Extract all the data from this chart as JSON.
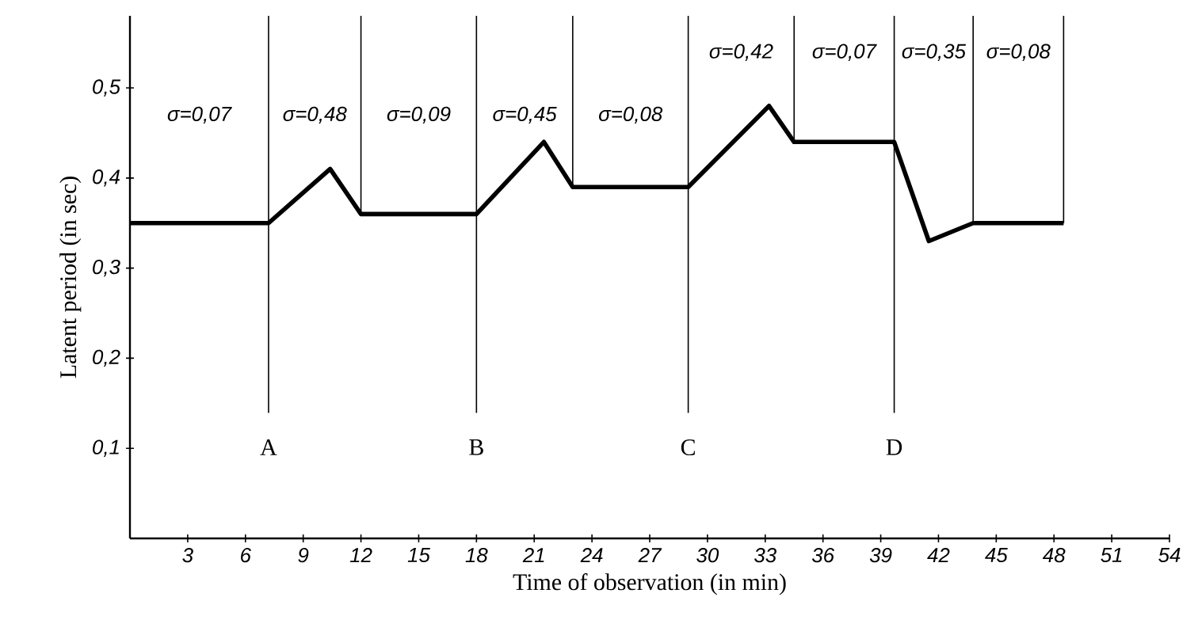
{
  "chart_data": {
    "type": "line",
    "xlabel": "Time of observation (in min)",
    "ylabel": "Latent period (in sec)",
    "x": [
      0,
      7.2,
      10.4,
      12,
      18,
      21.5,
      23,
      29,
      33.2,
      34.5,
      39.7,
      41.5,
      43.8,
      48.5
    ],
    "values": [
      0.35,
      0.35,
      0.41,
      0.36,
      0.36,
      0.44,
      0.39,
      0.39,
      0.48,
      0.44,
      0.44,
      0.33,
      0.35,
      0.35
    ],
    "color": "#000000",
    "marker": "none",
    "line_style": "solid",
    "xlim": [
      0,
      54
    ],
    "ylim": [
      0,
      0.58
    ],
    "xticks": [
      3,
      6,
      9,
      12,
      15,
      18,
      21,
      24,
      27,
      30,
      33,
      36,
      39,
      42,
      45,
      48,
      51,
      54
    ],
    "yticks": [
      {
        "value": 0.1,
        "label": "0,1"
      },
      {
        "value": 0.2,
        "label": "0,2"
      },
      {
        "value": 0.3,
        "label": "0,3"
      },
      {
        "value": 0.4,
        "label": "0,4"
      },
      {
        "value": 0.5,
        "label": "0,5"
      }
    ],
    "ref_lines": [
      {
        "axis": "x",
        "value": 7.2,
        "label": "A"
      },
      {
        "axis": "x",
        "value": 12
      },
      {
        "axis": "x",
        "value": 18,
        "label": "B"
      },
      {
        "axis": "x",
        "value": 23
      },
      {
        "axis": "x",
        "value": 29,
        "label": "C"
      },
      {
        "axis": "x",
        "value": 34.5
      },
      {
        "axis": "x",
        "value": 39.7,
        "label": "D"
      },
      {
        "axis": "x",
        "value": 43.8
      },
      {
        "axis": "x",
        "value": 48.5
      }
    ],
    "annotations": [
      "σ=0,07",
      "σ=0,48",
      "σ=0,09",
      "σ=0,45",
      "σ=0,08",
      "σ=0,42",
      "σ=0,07",
      "σ=0,35",
      "σ=0,08"
    ]
  }
}
